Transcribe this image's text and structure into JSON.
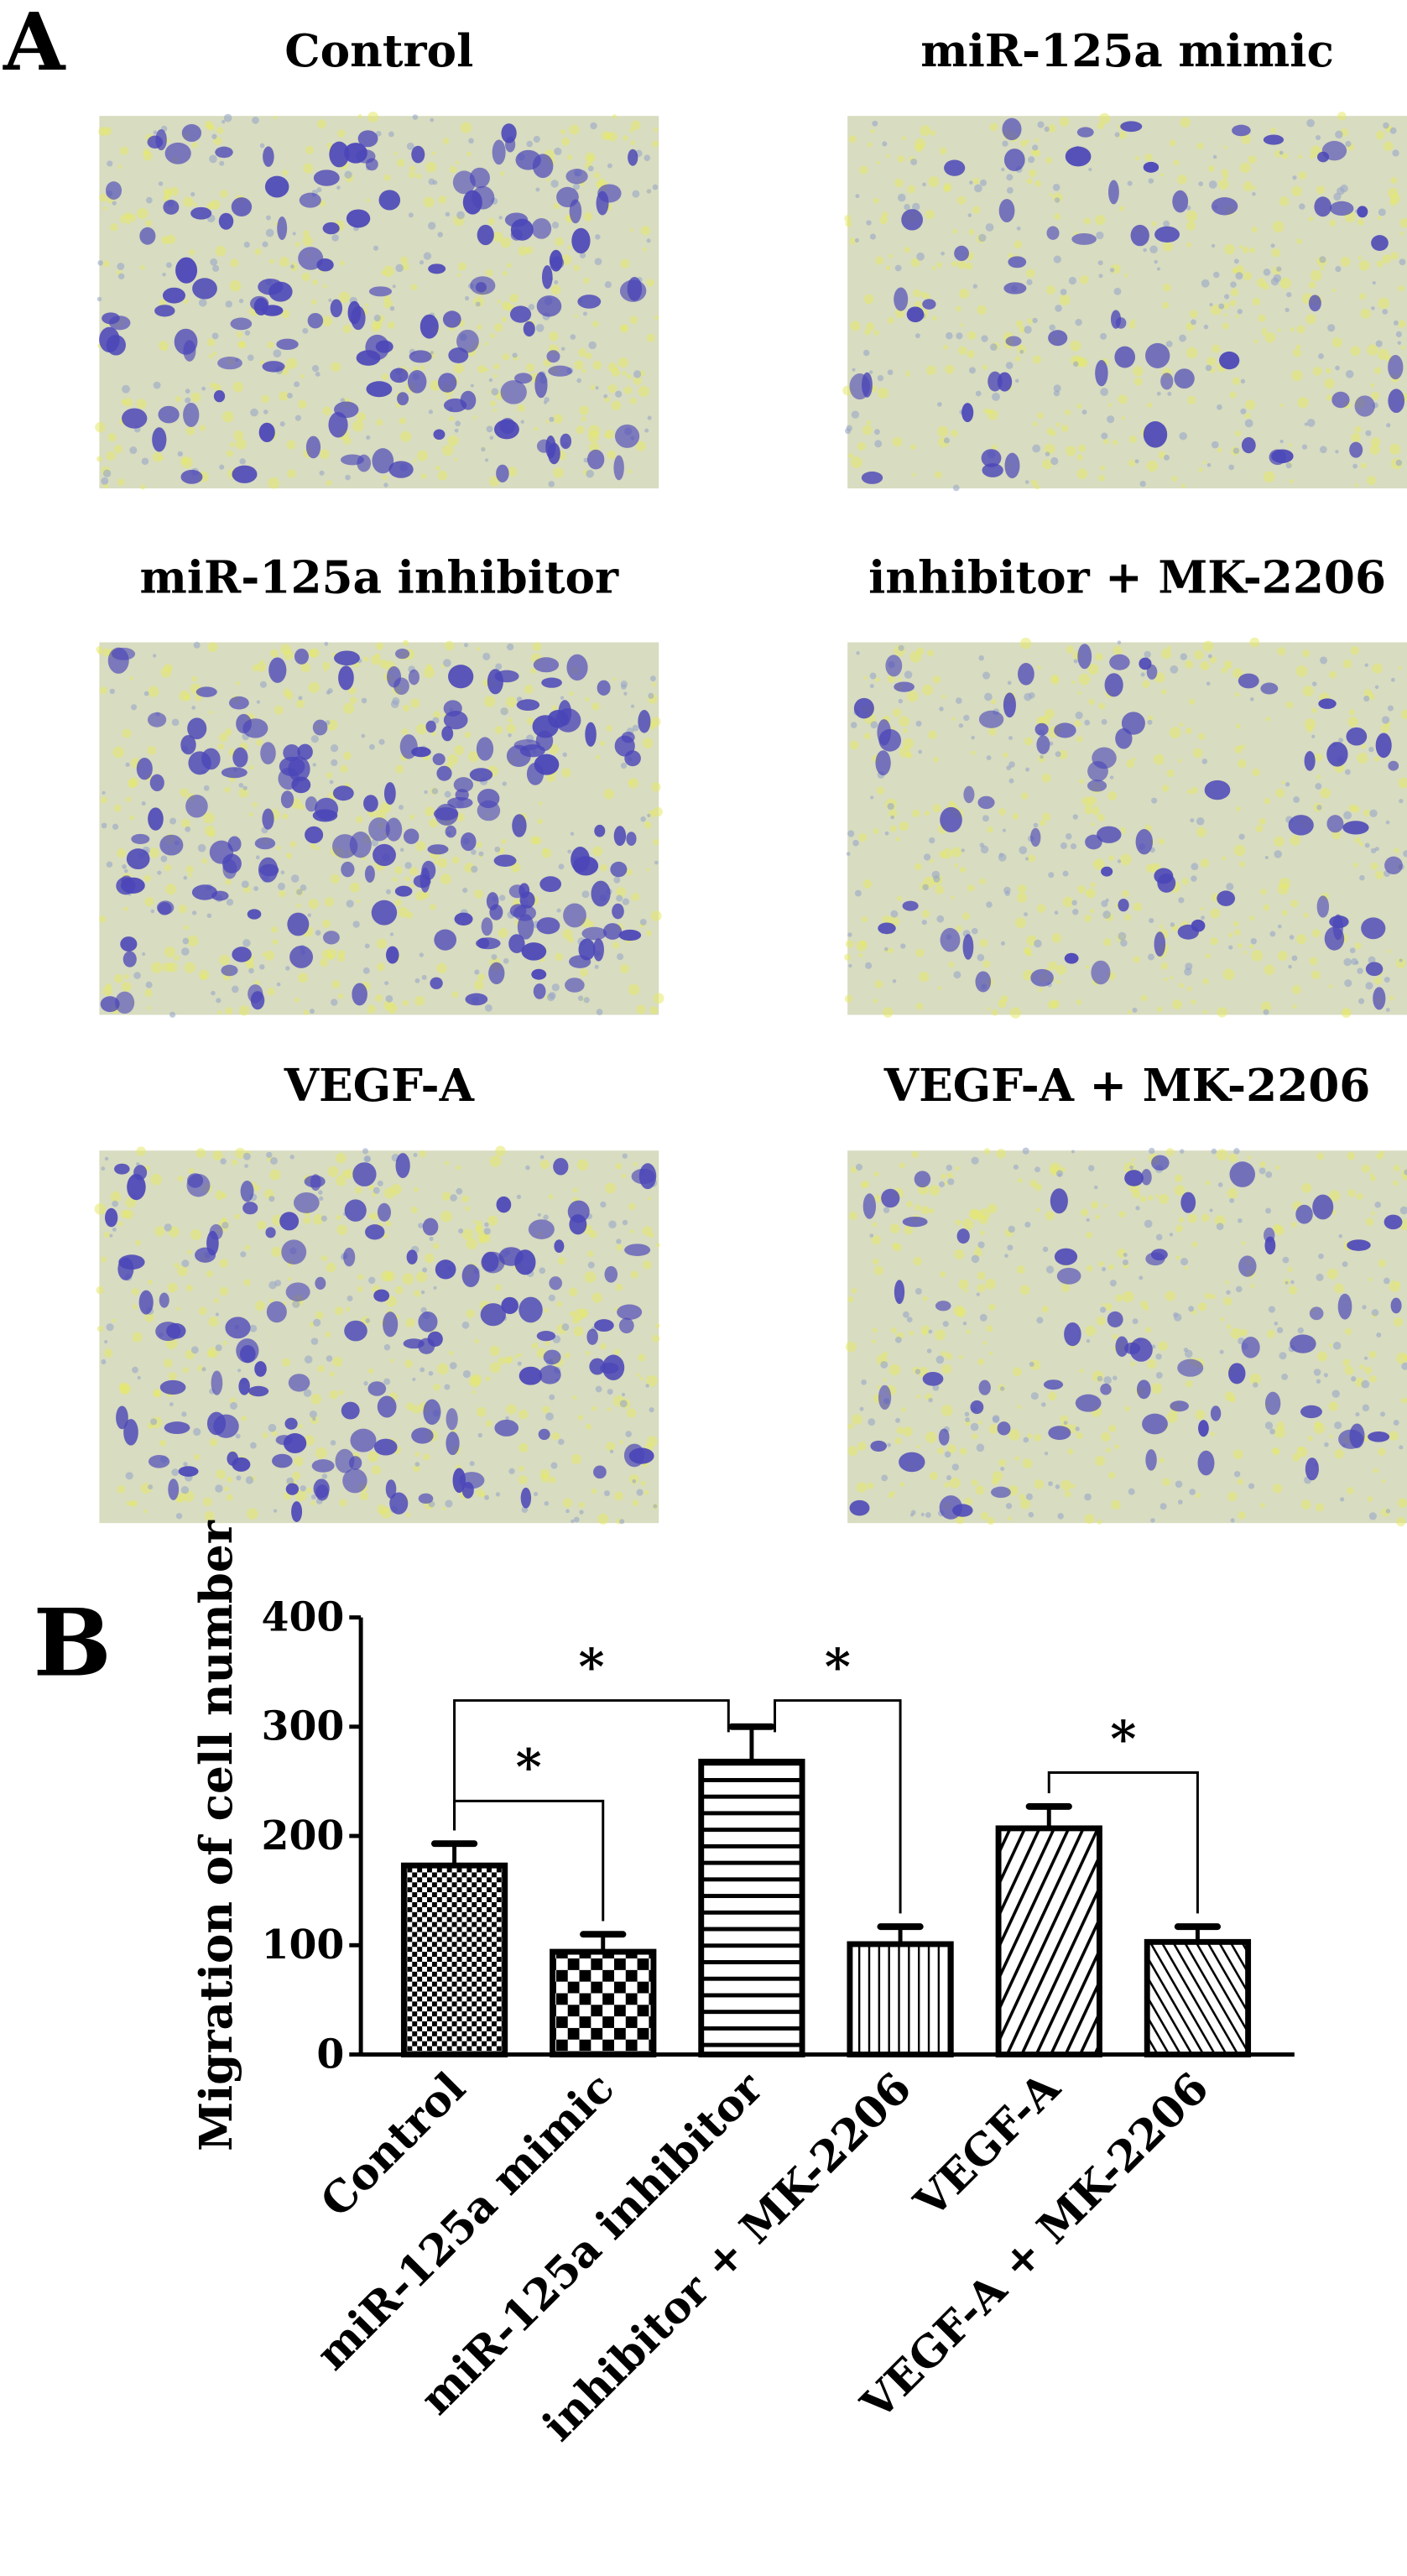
{
  "panel_a": {
    "label": "A",
    "images": [
      {
        "title": "Control",
        "density": 1.0
      },
      {
        "title": "miR-125a mimic",
        "density": 0.45
      },
      {
        "title": "miR-125a inhibitor",
        "density": 1.3
      },
      {
        "title": "inhibitor + MK-2206",
        "density": 0.5
      },
      {
        "title": "VEGF-A",
        "density": 0.95
      },
      {
        "title": "VEGF-A + MK-2206",
        "density": 0.5
      }
    ],
    "colors": {
      "background": "#d8dcc0",
      "cells": "#4b46b8",
      "yellow": "#e6ea6a"
    }
  },
  "chart_data": {
    "panel_label": "B",
    "type": "bar",
    "title": "",
    "xlabel": "",
    "ylabel": "Migration of cell number",
    "ylim": [
      0,
      400
    ],
    "yticks": [
      0,
      100,
      200,
      300,
      400
    ],
    "categories": [
      "Control",
      "miR-125a mimic",
      "miR-125a inhibitor",
      "inhibitor  + MK-2206",
      "VEGF-A",
      "VEGF-A + MK-2206"
    ],
    "values": [
      173,
      94,
      268,
      101,
      207,
      103
    ],
    "errors": [
      20,
      16,
      32,
      16,
      20,
      14
    ],
    "patterns": [
      "fine-check",
      "checker",
      "horizontal",
      "vertical",
      "diagonal-up",
      "diagonal-down"
    ],
    "significance": [
      {
        "from": 0,
        "to": 1,
        "label": "*",
        "level": 232
      },
      {
        "from": 0,
        "to": 2,
        "label": "*",
        "level": 324
      },
      {
        "from": 2,
        "to": 3,
        "label": "*",
        "level": 324
      },
      {
        "from": 4,
        "to": 5,
        "label": "*",
        "level": 258
      }
    ],
    "grid": false,
    "legend": "none"
  }
}
